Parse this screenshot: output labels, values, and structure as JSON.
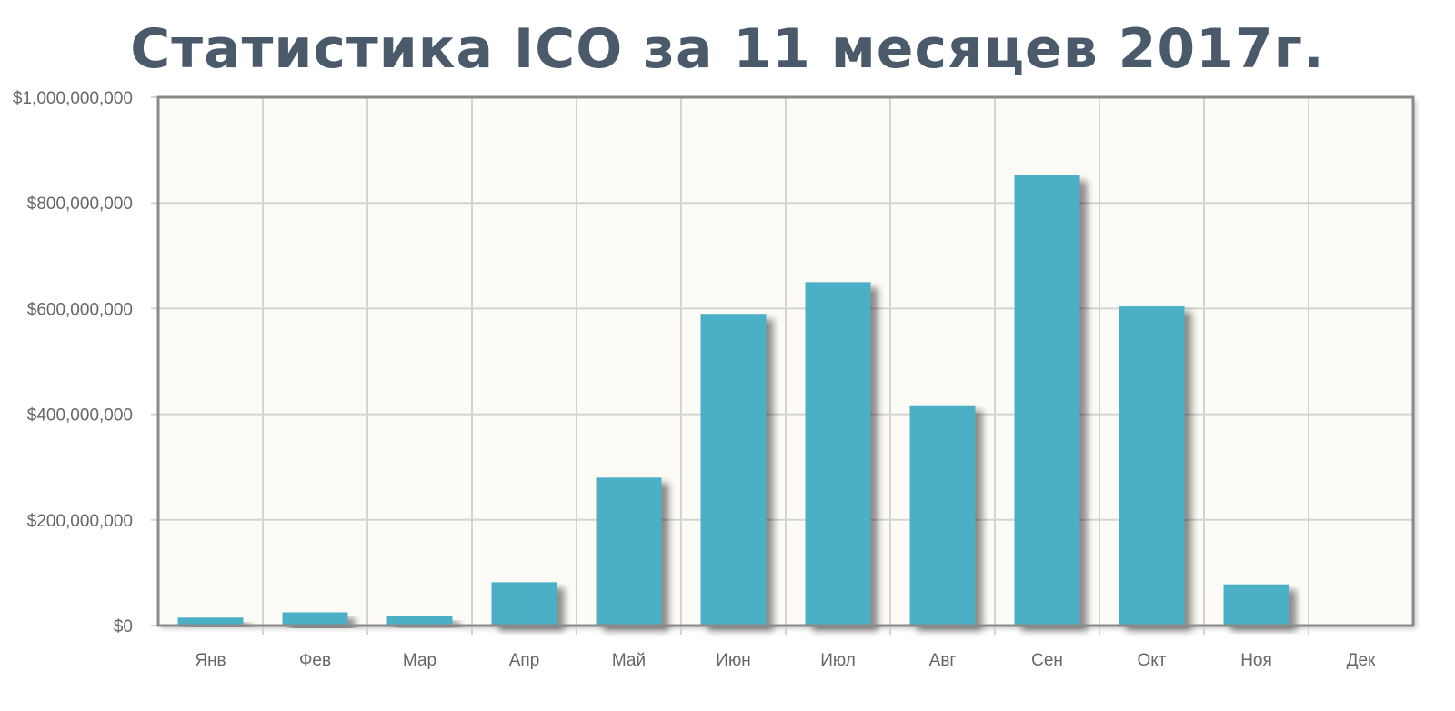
{
  "title": "Статистика ICO за 11 месяцев 2017г.",
  "colors": {
    "bar": "#4bb0c6",
    "plot_background": "#fdfbf5",
    "grid": "#d4d4d4",
    "axis": "#8a8a8a",
    "title": "#4a5a6a"
  },
  "chart_data": {
    "type": "bar",
    "title": "Статистика ICO за 11 месяцев 2017г.",
    "xlabel": "",
    "ylabel": "",
    "categories": [
      "Янв",
      "Фев",
      "Мар",
      "Апр",
      "Май",
      "Июн",
      "Июл",
      "Авг",
      "Сен",
      "Окт",
      "Ноя",
      "Дек"
    ],
    "values": [
      15000000,
      25000000,
      18000000,
      82000000,
      280000000,
      590000000,
      650000000,
      417000000,
      852000000,
      604000000,
      78000000,
      0
    ],
    "ylim": [
      0,
      1000000000
    ],
    "y_ticks": [
      0,
      200000000,
      400000000,
      600000000,
      800000000,
      1000000000
    ],
    "y_tick_labels": [
      "$0",
      "$200,000,000",
      "$400,000,000",
      "$600,000,000",
      "$800,000,000",
      "$1,000,000,000"
    ],
    "grid": true,
    "legend": "none"
  }
}
